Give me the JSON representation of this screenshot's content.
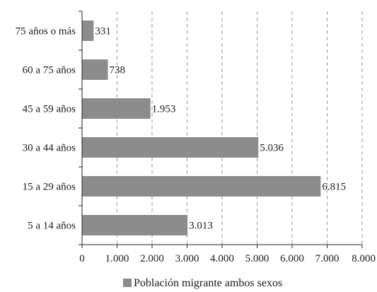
{
  "chart_data": {
    "type": "bar",
    "orientation": "horizontal",
    "categories": [
      "75 años o más",
      "60 a 75 años",
      "45 a 59 años",
      "30 a 44 años",
      "15 a 29 años",
      "5 a 14 años"
    ],
    "series": [
      {
        "name": "Población migrante ambos sexos",
        "values": [
          331,
          738,
          1953,
          5036,
          6815,
          3013
        ],
        "value_labels": [
          "331",
          "738",
          "1.953",
          "5.036",
          "6.815",
          "3.013"
        ],
        "color": "#8c8c8c"
      }
    ],
    "xlim": [
      0,
      8000
    ],
    "x_ticks": [
      0,
      1000,
      2000,
      3000,
      4000,
      5000,
      6000,
      7000,
      8000
    ],
    "x_tick_labels": [
      "0",
      "1.000",
      "2.000",
      "3.000",
      "4.000",
      "5.000",
      "6.000",
      "7.000",
      "8.000"
    ],
    "grid": "vertical-dashed",
    "legend_position": "bottom",
    "title": "",
    "xlabel": "",
    "ylabel": ""
  }
}
